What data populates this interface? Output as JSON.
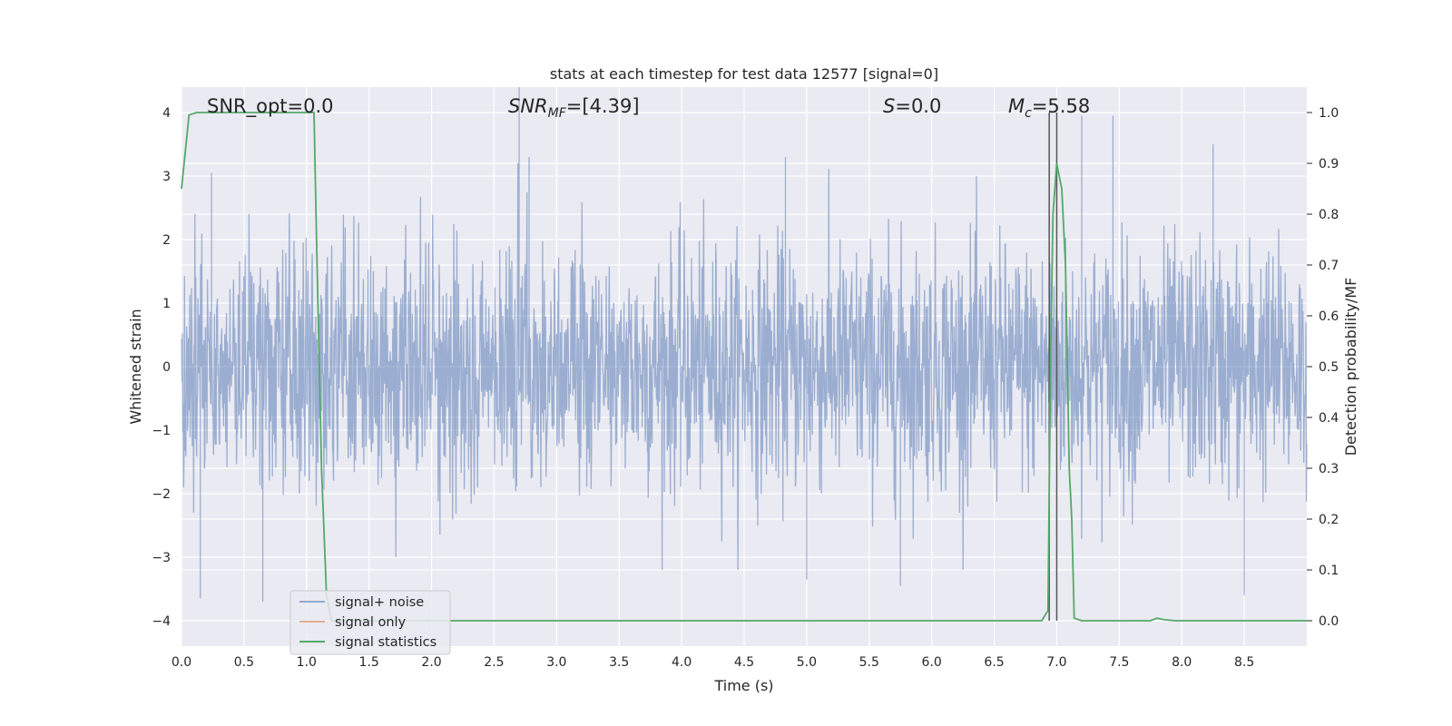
{
  "chart_data": {
    "type": "line",
    "title": "stats at each timestep for test data 12577 [signal=0]",
    "xlabel": "Time (s)",
    "ylabel_left": "Whitened strain",
    "ylabel_right": "Detection probability/MF",
    "xlim": [
      0.0,
      9.0
    ],
    "ylim_left": [
      -4.4,
      4.4
    ],
    "ylim_right": [
      -0.05,
      1.05
    ],
    "x_ticks": [
      "0.0",
      "0.5",
      "1.0",
      "1.5",
      "2.0",
      "2.5",
      "3.0",
      "3.5",
      "4.0",
      "4.5",
      "5.0",
      "5.5",
      "6.0",
      "6.5",
      "7.0",
      "7.5",
      "8.0",
      "8.5"
    ],
    "x_tick_values": [
      0.0,
      0.5,
      1.0,
      1.5,
      2.0,
      2.5,
      3.0,
      3.5,
      4.0,
      4.5,
      5.0,
      5.5,
      6.0,
      6.5,
      7.0,
      7.5,
      8.0,
      8.5
    ],
    "y_left_ticks": [
      "−4",
      "−3",
      "−2",
      "−1",
      "0",
      "1",
      "2",
      "3",
      "4"
    ],
    "y_left_tick_values": [
      -4,
      -3,
      -2,
      -1,
      0,
      1,
      2,
      3,
      4
    ],
    "y_right_ticks": [
      "0.0",
      "0.1",
      "0.2",
      "0.3",
      "0.4",
      "0.5",
      "0.6",
      "0.7",
      "0.8",
      "0.9",
      "1.0"
    ],
    "y_right_tick_values": [
      0.0,
      0.1,
      0.2,
      0.3,
      0.4,
      0.5,
      0.6,
      0.7,
      0.8,
      0.9,
      1.0
    ],
    "grid": true,
    "legend_position": "lower-left",
    "annotations": [
      {
        "id": "snr-opt",
        "text": "SNR_opt=0.0",
        "x": 0.2,
        "y": 4.1
      },
      {
        "id": "snr-mf",
        "text": "SNR_MF=[4.39]",
        "x": 2.6,
        "y": 4.1
      },
      {
        "id": "s-stat",
        "text": "S=0.0",
        "x": 5.6,
        "y": 4.1
      },
      {
        "id": "mc",
        "text": "M_c=5.58",
        "x": 6.6,
        "y": 4.1
      }
    ],
    "vertical_lines": [
      6.94,
      7.0
    ],
    "series": [
      {
        "name": "signal+ noise",
        "axis": "left",
        "color": "#4c72b0",
        "opacity": 0.5,
        "description": "noise-like whitened strain, roughly within -2.5..3 with spikes",
        "sample_rate_points": 2600,
        "envelope_peaks": [
          {
            "x": 0.15,
            "y": -3.65
          },
          {
            "x": 0.24,
            "y": 3.05
          },
          {
            "x": 0.65,
            "y": -3.7
          },
          {
            "x": 2.7,
            "y": 4.4
          },
          {
            "x": 2.78,
            "y": 3.3
          },
          {
            "x": 4.83,
            "y": 3.3
          },
          {
            "x": 5.0,
            "y": -3.35
          },
          {
            "x": 5.75,
            "y": -3.45
          },
          {
            "x": 7.2,
            "y": 3.95
          },
          {
            "x": 7.45,
            "y": 3.95
          },
          {
            "x": 8.25,
            "y": 3.5
          },
          {
            "x": 8.5,
            "y": -3.6
          }
        ]
      },
      {
        "name": "signal only",
        "axis": "left",
        "color": "#dd8452",
        "points": []
      },
      {
        "name": "signal statistics",
        "axis": "right",
        "color": "#55a868",
        "points": [
          [
            0.0,
            0.85
          ],
          [
            0.06,
            0.995
          ],
          [
            0.12,
            1.0
          ],
          [
            1.0,
            1.0
          ],
          [
            1.06,
            1.0
          ],
          [
            1.08,
            0.75
          ],
          [
            1.12,
            0.3
          ],
          [
            1.16,
            0.05
          ],
          [
            1.2,
            0.0
          ],
          [
            6.88,
            0.0
          ],
          [
            6.93,
            0.02
          ],
          [
            6.95,
            0.5
          ],
          [
            6.97,
            0.8
          ],
          [
            7.0,
            0.9
          ],
          [
            7.04,
            0.85
          ],
          [
            7.07,
            0.7
          ],
          [
            7.1,
            0.3
          ],
          [
            7.12,
            0.2
          ],
          [
            7.14,
            0.005
          ],
          [
            7.2,
            0.0
          ],
          [
            7.75,
            0.0
          ],
          [
            7.8,
            0.005
          ],
          [
            7.86,
            0.002
          ],
          [
            7.95,
            0.0
          ],
          [
            9.0,
            0.0
          ]
        ]
      }
    ]
  }
}
